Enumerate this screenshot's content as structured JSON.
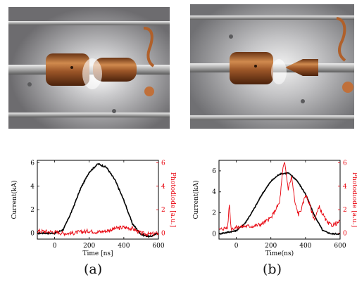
{
  "figure": {
    "captions": [
      "(a)",
      "(b)"
    ]
  },
  "photos": [
    {
      "id": "a",
      "subject": "electrode-gap-photo"
    },
    {
      "id": "b",
      "subject": "electrode-tip-photo"
    }
  ],
  "colors": {
    "current": "#000000",
    "photodiode": "#e8000b",
    "copper": "#b0602a",
    "metal": "#b9b9bb"
  },
  "chart_data": [
    {
      "type": "line",
      "xlabel": "Time [ns]",
      "ylabel_left": "Current(kA)",
      "ylabel_right": "Photodiode [a.u.]",
      "xlim": [
        -100,
        600
      ],
      "ylim_left": [
        -0.5,
        6.2
      ],
      "ylim_right": [
        -0.5,
        6.2
      ],
      "x_ticks": [
        "0",
        "200",
        "400",
        "600"
      ],
      "y_ticks_left": [
        "0",
        "2",
        "4",
        "6"
      ],
      "y_ticks_right": [
        "0",
        "2",
        "4",
        "6"
      ],
      "series": [
        {
          "axis": "left",
          "color": "#000000",
          "x": [
            -100,
            0,
            50,
            100,
            150,
            200,
            250,
            300,
            350,
            400,
            450,
            500,
            550,
            600
          ],
          "values": [
            0.0,
            0.0,
            0.3,
            1.9,
            3.8,
            5.2,
            5.9,
            5.6,
            4.5,
            2.8,
            0.8,
            -0.1,
            -0.3,
            0.0
          ]
        },
        {
          "axis": "right",
          "color": "#e8000b",
          "x": [
            -100,
            0,
            50,
            100,
            150,
            200,
            250,
            300,
            350,
            400,
            450,
            500,
            550,
            600
          ],
          "values": [
            0.2,
            0.1,
            0.0,
            0.0,
            0.1,
            0.2,
            0.1,
            0.2,
            0.4,
            0.5,
            0.4,
            0.0,
            -0.1,
            0.0
          ]
        }
      ]
    },
    {
      "type": "line",
      "xlabel": "Time(ns)",
      "ylabel_left": "Current(kA)",
      "ylabel_right": "Photodiode [a.u.]",
      "xlim": [
        -100,
        600
      ],
      "ylim_left": [
        -0.5,
        7
      ],
      "ylim_right": [
        -0.5,
        6.2
      ],
      "x_ticks": [
        "0",
        "200",
        "400",
        "600"
      ],
      "y_ticks_left": [
        "0",
        "2",
        "4",
        "6"
      ],
      "y_ticks_right": [
        "0",
        "2",
        "4",
        "6"
      ],
      "series": [
        {
          "axis": "left",
          "color": "#000000",
          "x": [
            -100,
            0,
            50,
            100,
            150,
            200,
            250,
            300,
            350,
            400,
            450,
            500,
            550,
            600
          ],
          "values": [
            0.0,
            0.3,
            1.0,
            2.3,
            3.8,
            5.0,
            5.7,
            5.8,
            5.1,
            3.8,
            1.8,
            0.3,
            0.0,
            0.0
          ]
        },
        {
          "axis": "right",
          "color": "#e8000b",
          "x": [
            -100,
            -50,
            -40,
            -30,
            0,
            50,
            100,
            150,
            200,
            250,
            270,
            280,
            300,
            320,
            340,
            360,
            380,
            400,
            420,
            450,
            480,
            500,
            530,
            560,
            600
          ],
          "values": [
            0.3,
            0.5,
            2.5,
            0.4,
            0.5,
            0.6,
            0.6,
            0.8,
            1.3,
            2.6,
            5.5,
            6.0,
            3.8,
            4.8,
            2.5,
            1.6,
            2.2,
            3.3,
            2.6,
            1.2,
            2.2,
            1.6,
            0.8,
            0.7,
            1.0
          ]
        }
      ]
    }
  ]
}
